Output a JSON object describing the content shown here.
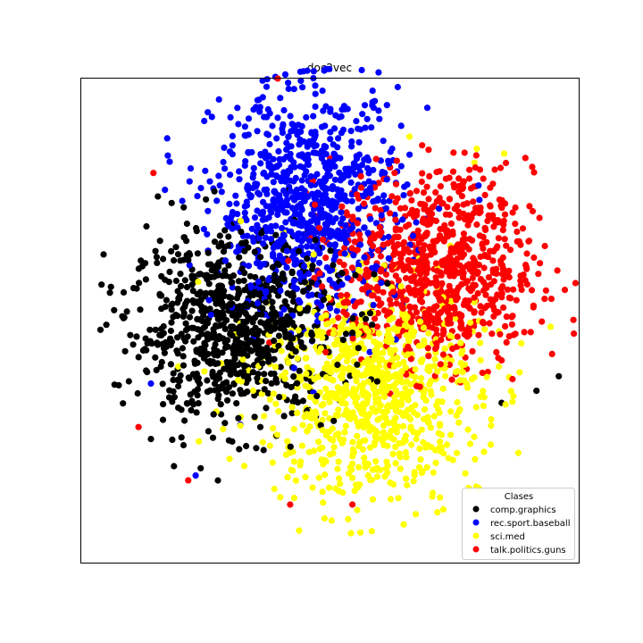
{
  "chart_data": {
    "type": "scatter",
    "title": "doc2vec",
    "xlabel": "",
    "ylabel": "",
    "xlim": [
      -10,
      10
    ],
    "ylim": [
      -10,
      10
    ],
    "grid": false,
    "axis_ticks": false,
    "legend": {
      "title": "Clases",
      "placement": "lower-right"
    },
    "series": [
      {
        "name": "comp.graphics",
        "color": "#000000",
        "cluster_center": [
          -3.8,
          -0.3
        ],
        "cluster_spread": [
          2.1,
          1.9
        ],
        "approx_points": 850,
        "sample_points": [
          [
            -8.3,
            0.1
          ],
          [
            -7.4,
            1.7
          ],
          [
            -6.1,
            -3.6
          ],
          [
            -5.2,
            -6.1
          ],
          [
            -4.1,
            3.1
          ],
          [
            -2.8,
            -4.4
          ],
          [
            -1.3,
            0.6
          ],
          [
            -0.4,
            -1.1
          ],
          [
            -6.8,
            -1.9
          ],
          [
            -3.3,
            1.4
          ],
          [
            9.2,
            -2.3
          ],
          [
            8.3,
            -2.9
          ],
          [
            6.9,
            -3.4
          ]
        ]
      },
      {
        "name": "rec.sport.baseball",
        "color": "#0000ff",
        "cluster_center": [
          -0.8,
          4.8
        ],
        "cluster_spread": [
          1.9,
          2.3
        ],
        "approx_points": 850,
        "sample_points": [
          [
            -4.0,
            8.4
          ],
          [
            -2.0,
            9.2
          ],
          [
            -0.3,
            9.5
          ],
          [
            1.4,
            8.9
          ],
          [
            2.2,
            6.1
          ],
          [
            -3.3,
            5.4
          ],
          [
            0.2,
            3.1
          ],
          [
            -1.1,
            1.9
          ],
          [
            -5.4,
            -6.4
          ],
          [
            -3.6,
            -4.3
          ],
          [
            -7.2,
            -2.6
          ],
          [
            0.9,
            -0.6
          ],
          [
            1.6,
            -1.3
          ]
        ]
      },
      {
        "name": "sci.med",
        "color": "#ffff00",
        "cluster_center": [
          1.6,
          -2.9
        ],
        "cluster_spread": [
          2.2,
          2.2
        ],
        "approx_points": 850,
        "sample_points": [
          [
            -2.0,
            -7.3
          ],
          [
            -0.7,
            -6.9
          ],
          [
            0.9,
            -6.5
          ],
          [
            3.1,
            -6.8
          ],
          [
            5.8,
            -4.8
          ],
          [
            4.6,
            -1.5
          ],
          [
            -0.5,
            -1.2
          ],
          [
            0.6,
            0.1
          ],
          [
            -6.1,
            -1.9
          ],
          [
            -5.3,
            1.6
          ],
          [
            5.9,
            7.1
          ],
          [
            7.0,
            6.9
          ],
          [
            3.2,
            7.6
          ]
        ]
      },
      {
        "name": "talk.politics.guns",
        "color": "#ff0000",
        "cluster_center": [
          4.2,
          2.1
        ],
        "cluster_spread": [
          2.0,
          2.0
        ],
        "approx_points": 850,
        "sample_points": [
          [
            2.6,
            6.1
          ],
          [
            4.8,
            5.9
          ],
          [
            6.9,
            4.8
          ],
          [
            8.2,
            2.6
          ],
          [
            8.9,
            0.9
          ],
          [
            7.1,
            -0.9
          ],
          [
            4.8,
            -1.5
          ],
          [
            1.4,
            -0.3
          ],
          [
            -7.1,
            6.1
          ],
          [
            -7.7,
            -4.4
          ],
          [
            -5.7,
            -6.6
          ],
          [
            -1.6,
            -7.6
          ],
          [
            0.9,
            -7.6
          ],
          [
            -2.1,
            10.0
          ]
        ]
      }
    ]
  }
}
